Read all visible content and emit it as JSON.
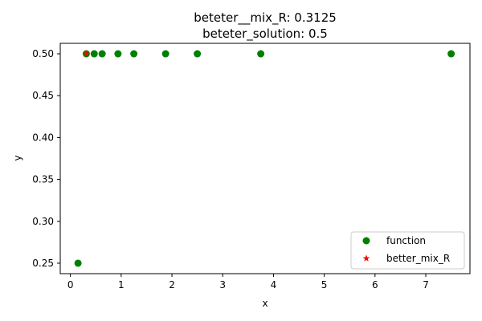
{
  "chart_data": {
    "type": "scatter",
    "title_lines": [
      "beteter__mix_R: 0.3125",
      "beteter_solution: 0.5"
    ],
    "xlabel": "x",
    "ylabel": "y",
    "xlim": [
      -0.2,
      7.87
    ],
    "ylim": [
      0.2375,
      0.5125
    ],
    "xticks": [
      0,
      1,
      2,
      3,
      4,
      5,
      6,
      7
    ],
    "xtick_labels": [
      "0",
      "1",
      "2",
      "3",
      "4",
      "5",
      "6",
      "7"
    ],
    "yticks": [
      0.25,
      0.3,
      0.35,
      0.4,
      0.45,
      0.5
    ],
    "ytick_labels": [
      "0.25",
      "0.30",
      "0.35",
      "0.40",
      "0.45",
      "0.50"
    ],
    "grid": false,
    "legend_position": "lower-right",
    "series": [
      {
        "name": "function",
        "marker": "circle",
        "color": "#008000",
        "x": [
          0.15,
          0.3125,
          0.46875,
          0.625,
          0.9375,
          1.25,
          1.875,
          2.5,
          3.75,
          7.5
        ],
        "y": [
          0.25,
          0.5,
          0.5,
          0.5,
          0.5,
          0.5,
          0.5,
          0.5,
          0.5,
          0.5
        ]
      },
      {
        "name": "better_mix_R",
        "marker": "star",
        "color": "#ff0000",
        "x": [
          0.3125
        ],
        "y": [
          0.5
        ]
      }
    ]
  }
}
